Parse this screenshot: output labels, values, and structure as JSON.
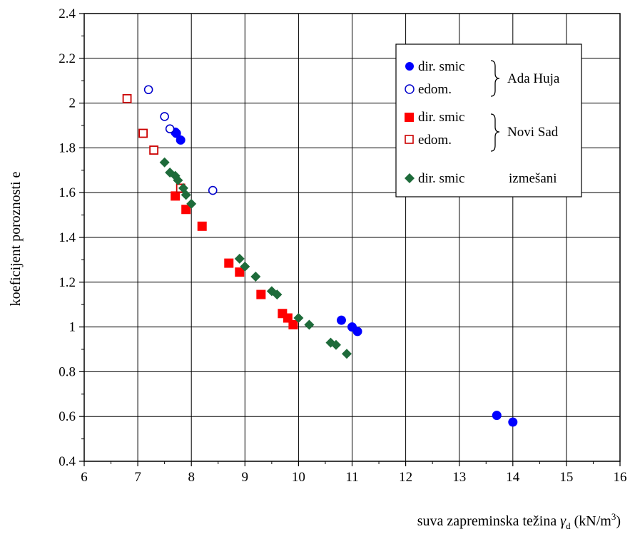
{
  "chart_data": {
    "type": "scatter",
    "title": "",
    "xlabel": "suva zapreminska težina",
    "xlabel_symbol": "γ",
    "xlabel_sub": "d",
    "xlabel_unit_pre": "(kN/m",
    "xlabel_unit_sup": "3",
    "xlabel_unit_post": ")",
    "ylabel": "koeficijent poroznosti  e",
    "xlim": [
      6,
      16
    ],
    "ylim": [
      0.4,
      2.4
    ],
    "x_ticks": [
      6,
      7,
      8,
      9,
      10,
      11,
      12,
      13,
      14,
      15,
      16
    ],
    "x_tick_labels": [
      "6",
      "7",
      "8",
      "9",
      "10",
      "11",
      "12",
      "13",
      "14",
      "15",
      "16"
    ],
    "y_ticks": [
      0.4,
      0.6,
      0.8,
      1.0,
      1.2,
      1.4,
      1.6,
      1.8,
      2.0,
      2.2,
      2.4
    ],
    "y_tick_labels": [
      "0.4",
      "0.6",
      "0.8",
      "1",
      "1.2",
      "1.4",
      "1.6",
      "1.8",
      "2",
      "2.2",
      "2.4"
    ],
    "grid": true,
    "legend_position": "top-right",
    "series": [
      {
        "name": "dir. smic",
        "group": "Ada Huja",
        "marker": "circle-filled",
        "color": "#0000ff",
        "points": [
          [
            7.7,
            1.87
          ],
          [
            7.72,
            1.865
          ],
          [
            7.8,
            1.835
          ],
          [
            10.8,
            1.03
          ],
          [
            11.0,
            1.0
          ],
          [
            11.1,
            0.98
          ],
          [
            13.7,
            0.605
          ],
          [
            14.0,
            0.575
          ]
        ]
      },
      {
        "name": "edom.",
        "group": "Ada Huja",
        "marker": "circle-open",
        "color": "#0000cc",
        "points": [
          [
            7.2,
            2.06
          ],
          [
            7.5,
            1.94
          ],
          [
            7.6,
            1.885
          ],
          [
            8.4,
            1.61
          ]
        ]
      },
      {
        "name": "dir. smic",
        "group": "Novi Sad",
        "marker": "square-filled",
        "color": "#ff0000",
        "points": [
          [
            7.7,
            1.585
          ],
          [
            7.9,
            1.525
          ],
          [
            8.2,
            1.45
          ],
          [
            8.7,
            1.285
          ],
          [
            8.9,
            1.245
          ],
          [
            9.3,
            1.145
          ],
          [
            9.7,
            1.06
          ],
          [
            9.8,
            1.04
          ],
          [
            9.9,
            1.01
          ]
        ]
      },
      {
        "name": "edom.",
        "group": "Novi Sad",
        "marker": "square-open",
        "color": "#cc0000",
        "points": [
          [
            6.8,
            2.02
          ],
          [
            7.1,
            1.865
          ],
          [
            7.3,
            1.79
          ],
          [
            7.8,
            1.62
          ]
        ]
      },
      {
        "name": "dir. smic",
        "group": "izmešani",
        "marker": "diamond-filled",
        "color": "#1e6b3a",
        "points": [
          [
            7.5,
            1.735
          ],
          [
            7.6,
            1.69
          ],
          [
            7.7,
            1.675
          ],
          [
            7.75,
            1.655
          ],
          [
            7.85,
            1.62
          ],
          [
            7.9,
            1.59
          ],
          [
            8.0,
            1.55
          ],
          [
            8.9,
            1.305
          ],
          [
            9.0,
            1.27
          ],
          [
            9.2,
            1.225
          ],
          [
            9.5,
            1.16
          ],
          [
            9.6,
            1.145
          ],
          [
            10.0,
            1.04
          ],
          [
            10.2,
            1.01
          ],
          [
            10.6,
            0.93
          ],
          [
            10.7,
            0.92
          ],
          [
            10.9,
            0.88
          ]
        ]
      }
    ],
    "legend_groups": [
      {
        "label": "Ada Huja",
        "entries": [
          "dir. smic",
          "edom."
        ]
      },
      {
        "label": "Novi Sad",
        "entries": [
          "dir. smic",
          "edom."
        ]
      },
      {
        "label": "izmešani",
        "entries": [
          "dir. smic"
        ]
      }
    ]
  }
}
